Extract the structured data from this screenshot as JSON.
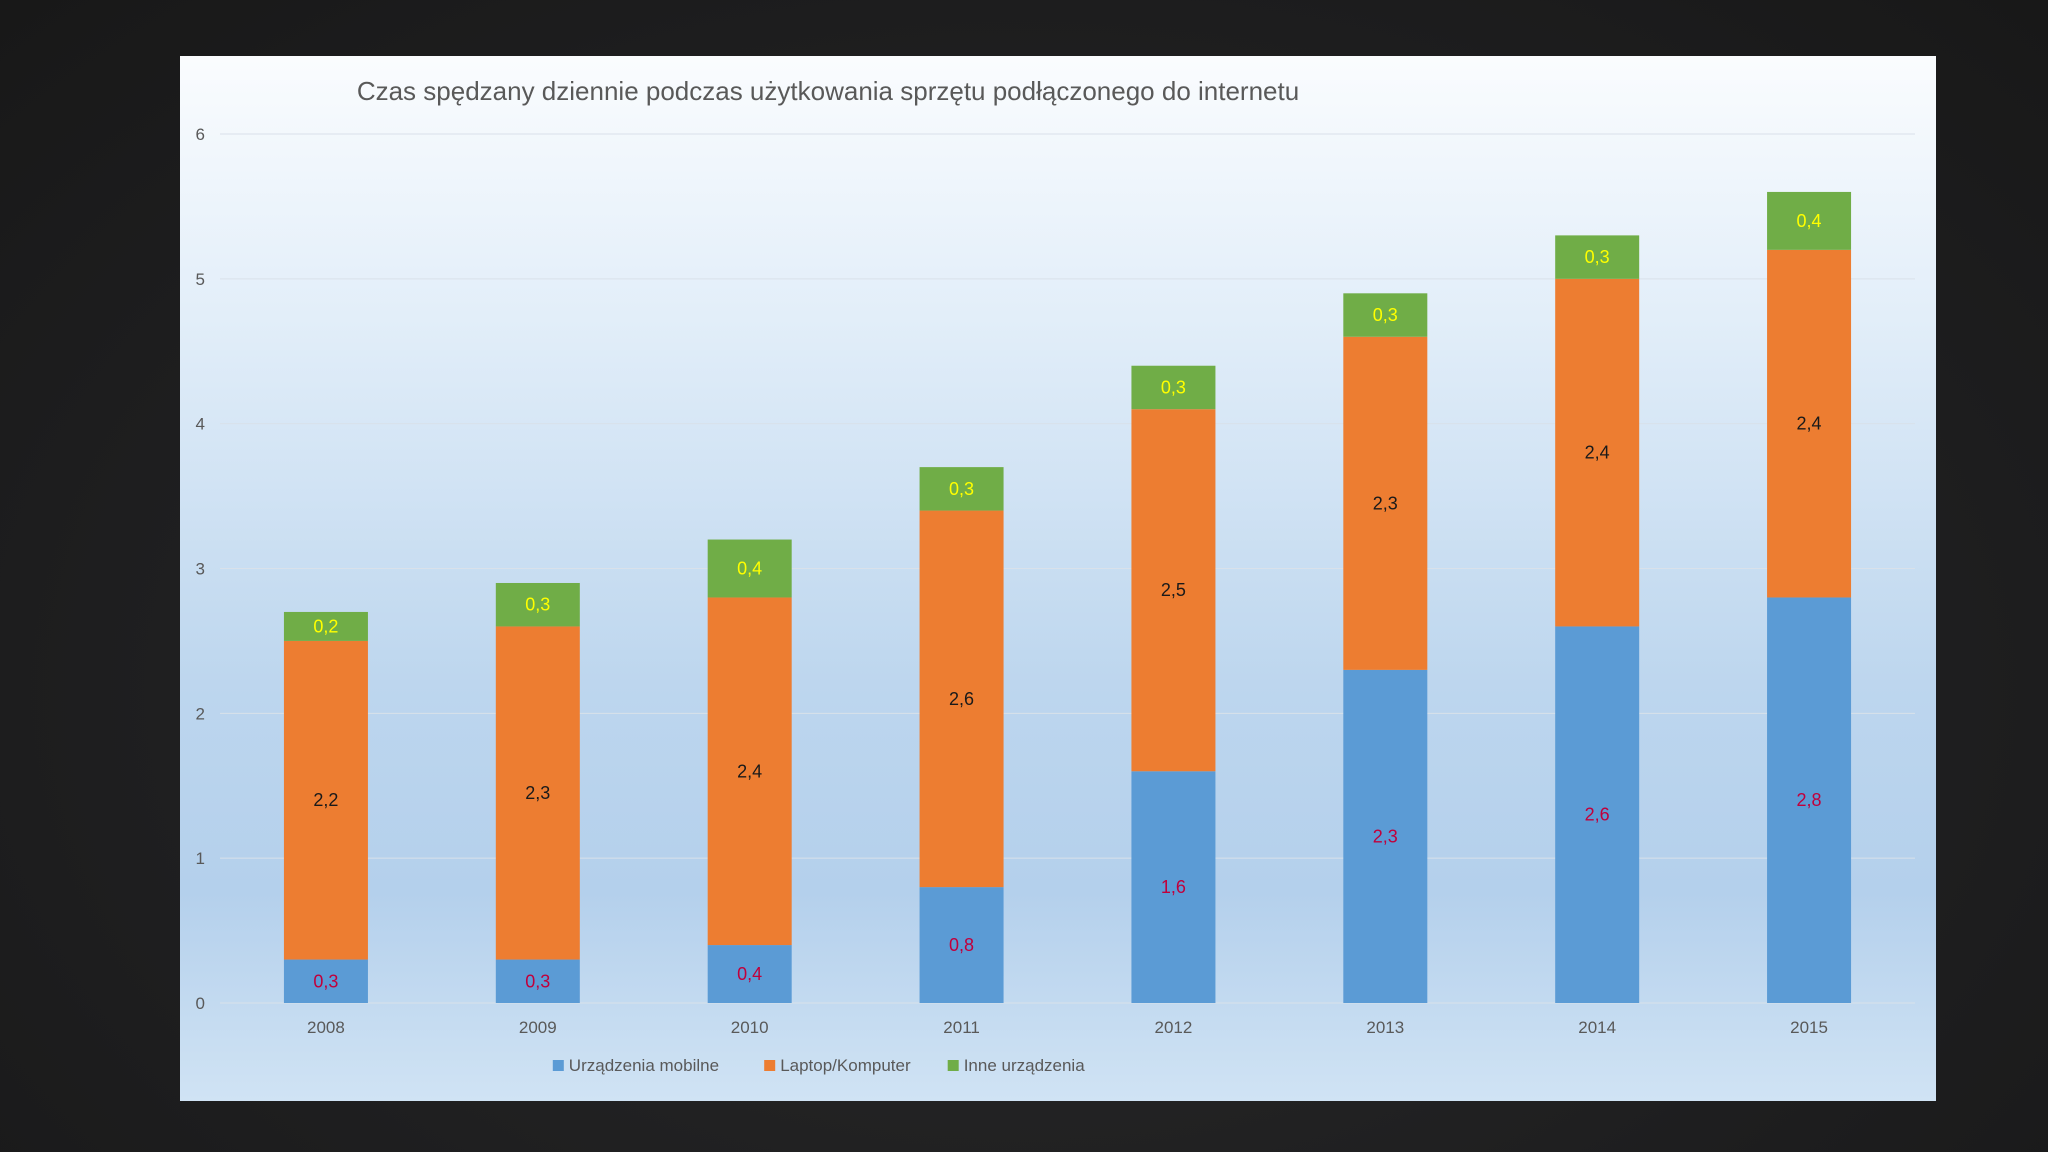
{
  "chart_data": {
    "type": "bar",
    "stacked": true,
    "title": "Czas spędzany dziennie podczas użytkowania sprzętu podłączonego do internetu",
    "xlabel": "",
    "ylabel": "",
    "ylim": [
      0,
      6
    ],
    "yticks": [
      0,
      1,
      2,
      3,
      4,
      5,
      6
    ],
    "grid": true,
    "legend_position": "bottom",
    "categories": [
      "2008",
      "2009",
      "2010",
      "2011",
      "2012",
      "2013",
      "2014",
      "2015"
    ],
    "series": [
      {
        "name": "Urządzenia mobilne",
        "color": "#5b9bd5",
        "label_color": "#c0003c",
        "values": [
          0.3,
          0.3,
          0.4,
          0.8,
          1.6,
          2.3,
          2.6,
          2.8
        ],
        "labels": [
          "0,3",
          "0,3",
          "0,4",
          "0,8",
          "1,6",
          "2,3",
          "2,6",
          "2,8"
        ]
      },
      {
        "name": "Laptop/Komputer",
        "color": "#ed7d31",
        "label_color": "#1a1a1a",
        "values": [
          2.2,
          2.3,
          2.4,
          2.6,
          2.5,
          2.3,
          2.4,
          2.4
        ],
        "labels": [
          "2,2",
          "2,3",
          "2,4",
          "2,6",
          "2,5",
          "2,3",
          "2,4",
          "2,4"
        ]
      },
      {
        "name": "Inne urządzenia",
        "color": "#70ad47",
        "label_color": "#ffff00",
        "values": [
          0.2,
          0.3,
          0.4,
          0.3,
          0.3,
          0.3,
          0.3,
          0.4
        ],
        "labels": [
          "0,2",
          "0,3",
          "0,4",
          "0,3",
          "0,3",
          "0,3",
          "0,3",
          "0,4"
        ]
      }
    ]
  }
}
